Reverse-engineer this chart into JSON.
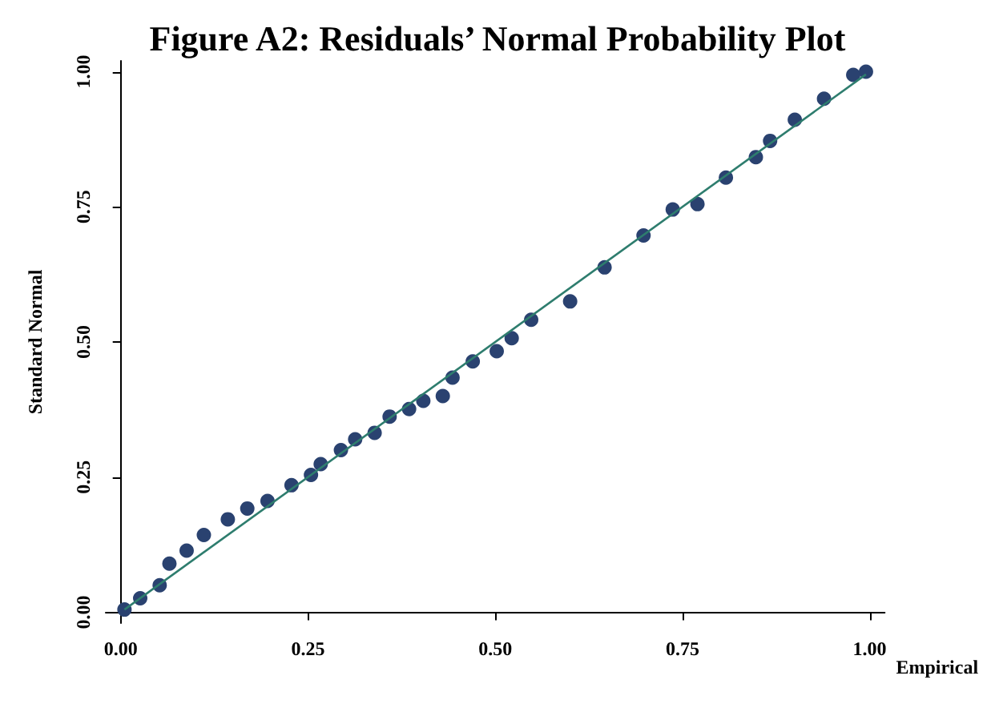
{
  "chart_data": {
    "type": "scatter",
    "title": "Figure A2: Residuals’ Normal Probability Plot",
    "xlabel": "Empirical",
    "ylabel": "Standard Normal",
    "xlim": [
      -0.02,
      1.02
    ],
    "ylim": [
      -0.02,
      1.02
    ],
    "xticks": [
      {
        "value": 0,
        "label": "0.00"
      },
      {
        "value": 0.25,
        "label": "0.25"
      },
      {
        "value": 0.5,
        "label": "0.50"
      },
      {
        "value": 0.75,
        "label": "0.75"
      },
      {
        "value": 1,
        "label": "1.00"
      }
    ],
    "yticks": [
      {
        "value": 0,
        "label": "0.00"
      },
      {
        "value": 0.25,
        "label": "0.25"
      },
      {
        "value": 0.5,
        "label": "0.50"
      },
      {
        "value": 0.75,
        "label": "0.75"
      },
      {
        "value": 1,
        "label": "1.00"
      }
    ],
    "grid": false,
    "marker": "circle",
    "series": [
      {
        "color": "#2a4270",
        "x": [
          0.005,
          0.026,
          0.052,
          0.065,
          0.088,
          0.111,
          0.143,
          0.169,
          0.196,
          0.228,
          0.254,
          0.267,
          0.294,
          0.313,
          0.339,
          0.359,
          0.385,
          0.404,
          0.43,
          0.443,
          0.47,
          0.502,
          0.522,
          0.548,
          0.6,
          0.646,
          0.698,
          0.737,
          0.77,
          0.808,
          0.848,
          0.867,
          0.9,
          0.939,
          0.978,
          0.995
        ],
        "values": [
          0.005,
          0.026,
          0.05,
          0.09,
          0.114,
          0.143,
          0.172,
          0.192,
          0.206,
          0.235,
          0.254,
          0.274,
          0.3,
          0.32,
          0.332,
          0.362,
          0.376,
          0.391,
          0.4,
          0.434,
          0.464,
          0.483,
          0.507,
          0.541,
          0.575,
          0.638,
          0.697,
          0.745,
          0.755,
          0.804,
          0.842,
          0.872,
          0.911,
          0.95,
          0.994,
          1.0
        ]
      },
      {
        "type": "line",
        "color": "#2e7d6e",
        "marker": "none",
        "x": [
          0.005,
          0.995
        ],
        "values": [
          0.005,
          0.995
        ]
      }
    ]
  }
}
